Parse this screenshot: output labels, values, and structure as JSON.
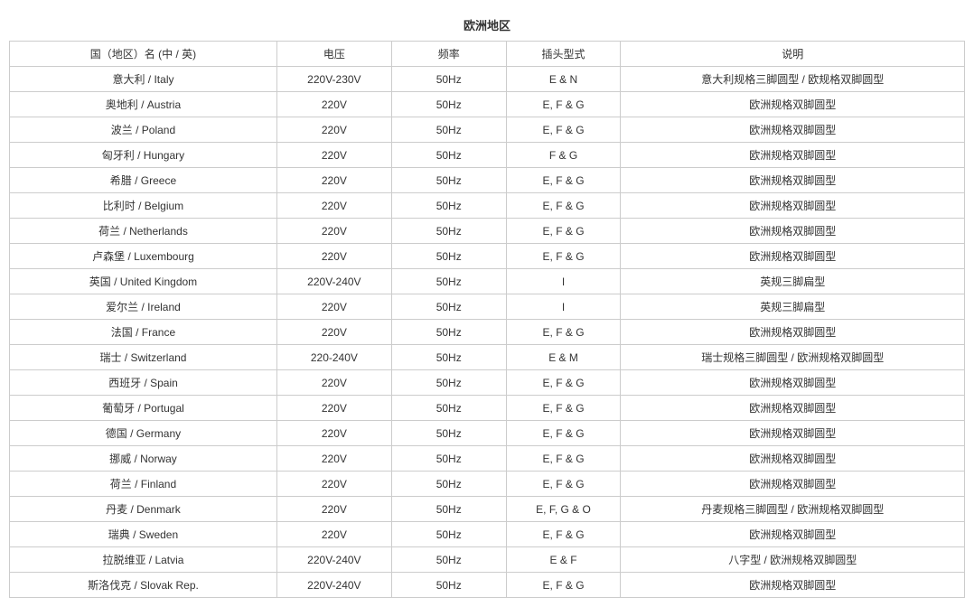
{
  "title": "欧洲地区",
  "table": {
    "type": "table",
    "background_color": "#ffffff",
    "border_color": "#cccccc",
    "text_color": "#333333",
    "font_size": 12,
    "title_fontsize": 13,
    "column_widths_pct": [
      28,
      12,
      12,
      12,
      36
    ],
    "columns": [
      "国（地区）名 (中 / 英)",
      "电压",
      "频率",
      "插头型式",
      "说明"
    ],
    "rows": [
      [
        "意大利 / Italy",
        "220V-230V",
        "50Hz",
        "E & N",
        "意大利规格三脚圆型 / 欧规格双脚圆型"
      ],
      [
        "奥地利 / Austria",
        "220V",
        "50Hz",
        "E, F & G",
        "欧洲规格双脚圆型"
      ],
      [
        "波兰 / Poland",
        "220V",
        "50Hz",
        "E, F & G",
        "欧洲规格双脚圆型"
      ],
      [
        "匈牙利 / Hungary",
        "220V",
        "50Hz",
        "F & G",
        "欧洲规格双脚圆型"
      ],
      [
        "希腊 / Greece",
        "220V",
        "50Hz",
        "E, F & G",
        "欧洲规格双脚圆型"
      ],
      [
        "比利时 / Belgium",
        "220V",
        "50Hz",
        "E, F & G",
        "欧洲规格双脚圆型"
      ],
      [
        "荷兰 / Netherlands",
        "220V",
        "50Hz",
        "E, F & G",
        "欧洲规格双脚圆型"
      ],
      [
        "卢森堡 / Luxembourg",
        "220V",
        "50Hz",
        "E, F & G",
        "欧洲规格双脚圆型"
      ],
      [
        "英国 / United Kingdom",
        "220V-240V",
        "50Hz",
        "I",
        "英规三脚扁型"
      ],
      [
        "爱尔兰 / Ireland",
        "220V",
        "50Hz",
        "I",
        "英规三脚扁型"
      ],
      [
        "法国 / France",
        "220V",
        "50Hz",
        "E, F & G",
        "欧洲规格双脚圆型"
      ],
      [
        "瑞士 / Switzerland",
        "220-240V",
        "50Hz",
        "E & M",
        "瑞士规格三脚圆型 / 欧洲规格双脚圆型"
      ],
      [
        "西班牙 / Spain",
        "220V",
        "50Hz",
        "E, F & G",
        "欧洲规格双脚圆型"
      ],
      [
        "葡萄牙 / Portugal",
        "220V",
        "50Hz",
        "E, F & G",
        "欧洲规格双脚圆型"
      ],
      [
        "德国 / Germany",
        "220V",
        "50Hz",
        "E, F & G",
        "欧洲规格双脚圆型"
      ],
      [
        "挪威 / Norway",
        "220V",
        "50Hz",
        "E, F & G",
        "欧洲规格双脚圆型"
      ],
      [
        "荷兰 / Finland",
        "220V",
        "50Hz",
        "E, F & G",
        "欧洲规格双脚圆型"
      ],
      [
        "丹麦 / Denmark",
        "220V",
        "50Hz",
        "E, F, G & O",
        "丹麦规格三脚圆型 / 欧洲规格双脚圆型"
      ],
      [
        "瑞典 / Sweden",
        "220V",
        "50Hz",
        "E, F & G",
        "欧洲规格双脚圆型"
      ],
      [
        "拉脱维亚 / Latvia",
        "220V-240V",
        "50Hz",
        "E & F",
        "八字型 / 欧洲规格双脚圆型"
      ],
      [
        "斯洛伐克 / Slovak Rep.",
        "220V-240V",
        "50Hz",
        "E, F & G",
        "欧洲规格双脚圆型"
      ]
    ]
  }
}
